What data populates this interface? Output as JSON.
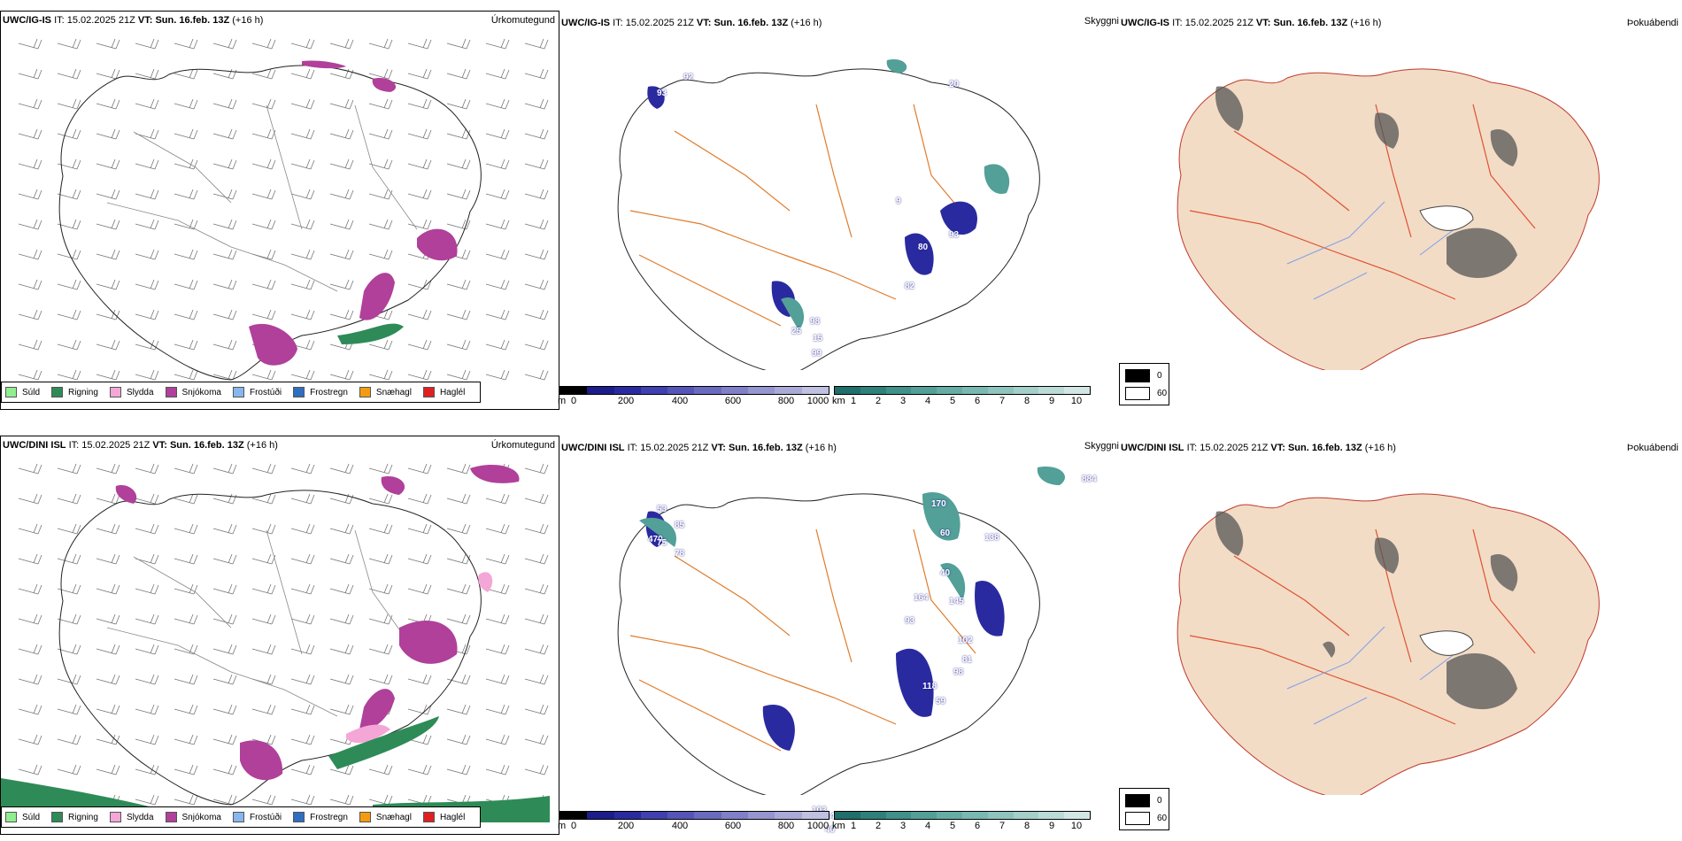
{
  "rows": [
    {
      "model": "UWC/IG-IS",
      "it_label": "IT:",
      "it_value": "15.02.2025 21Z",
      "vt_label": "VT:",
      "vt_value": "Sun. 16.feb. 13Z",
      "lead": "(+16 h)",
      "precip_title": "Úrkomutegund",
      "vis_title": "Skyggni",
      "cloud_title": "Þokuábendi",
      "vis_numbers": [
        "93",
        "92",
        "20",
        "9",
        "80",
        "93",
        "82",
        "98",
        "15",
        "25",
        "99"
      ],
      "legend": [
        {
          "label": "Súld",
          "color": "#90ee90"
        },
        {
          "label": "Rigning",
          "color": "#2e8b57"
        },
        {
          "label": "Slydda",
          "color": "#f4a6d7"
        },
        {
          "label": "Snjókoma",
          "color": "#b0409a"
        },
        {
          "label": "Frostúði",
          "color": "#87b7ec"
        },
        {
          "label": "Frostregn",
          "color": "#2f6ec1"
        },
        {
          "label": "Snæhagl",
          "color": "#f39c12"
        },
        {
          "label": "Haglél",
          "color": "#e02020"
        }
      ],
      "cbar_m": {
        "unit": "m",
        "ticks": [
          "0",
          "200",
          "400",
          "600",
          "800",
          "1000"
        ]
      },
      "cbar_km": {
        "unit": "km",
        "ticks": [
          "1",
          "2",
          "3",
          "4",
          "5",
          "6",
          "7",
          "8",
          "9",
          "10"
        ]
      },
      "cloud_legend": {
        "top": "0",
        "bottom": "60"
      }
    },
    {
      "model": "UWC/DINI ISL",
      "it_label": "IT:",
      "it_value": "15.02.2025 21Z",
      "vt_label": "VT:",
      "vt_value": "Sun. 16.feb. 13Z",
      "lead": "(+16 h)",
      "precip_title": "Úrkomutegund",
      "vis_title": "Skyggni",
      "cloud_title": "Þokuábendi",
      "vis_numbers": [
        "53",
        "85",
        "470",
        "75",
        "78",
        "170",
        "60",
        "138",
        "40",
        "164",
        "145",
        "93",
        "102",
        "81",
        "98",
        "118",
        "59",
        "147",
        "103",
        "40",
        "884"
      ],
      "legend": [
        {
          "label": "Súld",
          "color": "#90ee90"
        },
        {
          "label": "Rigning",
          "color": "#2e8b57"
        },
        {
          "label": "Slydda",
          "color": "#f4a6d7"
        },
        {
          "label": "Snjókoma",
          "color": "#b0409a"
        },
        {
          "label": "Frostúði",
          "color": "#87b7ec"
        },
        {
          "label": "Frostregn",
          "color": "#2f6ec1"
        },
        {
          "label": "Snæhagl",
          "color": "#f39c12"
        },
        {
          "label": "Haglél",
          "color": "#e02020"
        }
      ],
      "cbar_m": {
        "unit": "m",
        "ticks": [
          "0",
          "200",
          "400",
          "600",
          "800",
          "1000"
        ]
      },
      "cbar_km": {
        "unit": "km",
        "ticks": [
          "1",
          "2",
          "3",
          "4",
          "5",
          "6",
          "7",
          "8",
          "9",
          "10"
        ]
      },
      "cloud_legend": {
        "top": "0",
        "bottom": "60"
      }
    }
  ],
  "colors": {
    "snow": "#b0409a",
    "sleet": "#f4a6d7",
    "rain": "#2e8b57",
    "vis_m_scale": [
      "#000000",
      "#1c1c8a",
      "#2a2aa0",
      "#4040b0",
      "#5555b8",
      "#6a6ac0",
      "#8080c8",
      "#9595d0",
      "#aaaad8",
      "#c0c0e0"
    ],
    "vis_km_scale": [
      "#1f6f6a",
      "#2e807a",
      "#3f918a",
      "#52a098",
      "#66ada5",
      "#7ab9b2",
      "#8fc4be",
      "#a5d0ca",
      "#bbdbd6",
      "#d2e7e3"
    ],
    "roads": "#e07b2a",
    "land_tan": "#f2dcc6",
    "rivers": "#7f9ee8"
  }
}
